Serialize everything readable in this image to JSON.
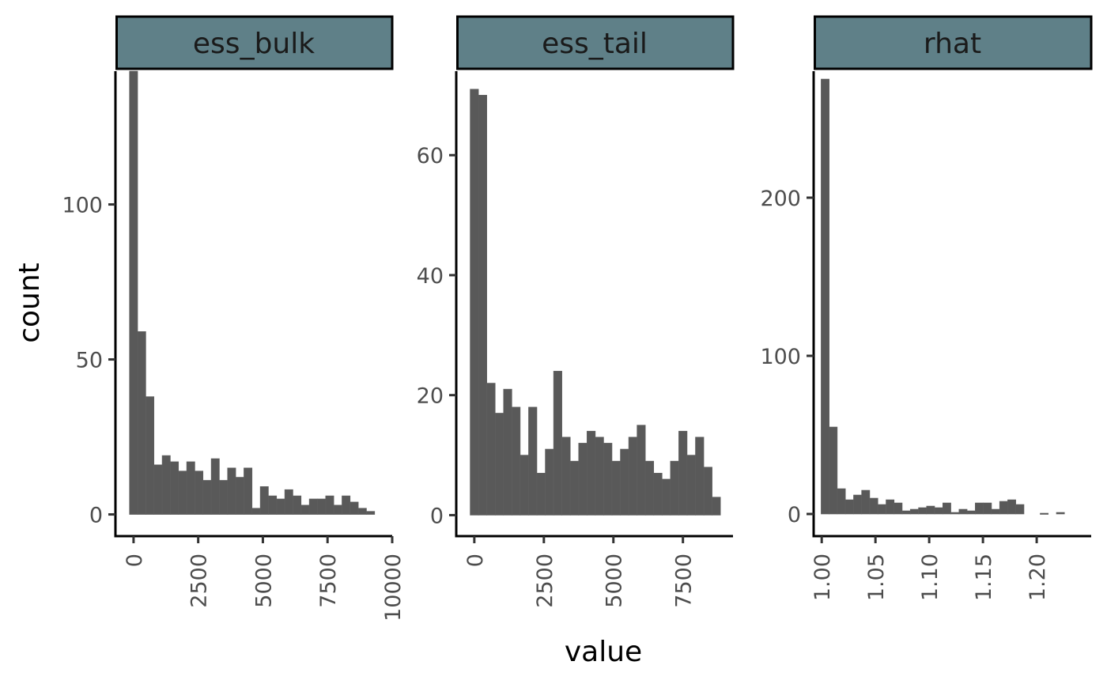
{
  "figure": {
    "x_title": "value",
    "y_title": "count",
    "bar_color": "#595959",
    "strip_color": "#5f8088",
    "panel_color": "#ffffff",
    "axis_color": "#000000"
  },
  "chart_data": [
    {
      "type": "bar",
      "title": "ess_bulk",
      "xlabel": "value",
      "ylabel": "count",
      "grid": false,
      "binwidth": 316,
      "xlim": [
        -700,
        10000
      ],
      "ylim": [
        -7,
        143
      ],
      "xticks": [
        0,
        2500,
        5000,
        7500,
        10000
      ],
      "xtick_labels": [
        "0",
        "2500",
        "5000",
        "7500",
        "10000"
      ],
      "yticks": [
        0,
        50,
        100
      ],
      "ytick_labels": [
        "0",
        "50",
        "100"
      ],
      "bin_centers": [
        0,
        316,
        632,
        948,
        1264,
        1580,
        1896,
        2212,
        2528,
        2844,
        3160,
        3476,
        3792,
        4108,
        4424,
        4740,
        5056,
        5372,
        5688,
        6004,
        6320,
        6636,
        6952,
        7268,
        7584,
        7900,
        8216,
        8532,
        8848,
        9164
      ],
      "counts": [
        143,
        59,
        38,
        16,
        19,
        17,
        14,
        17,
        14,
        11,
        18,
        11,
        15,
        12,
        15,
        2,
        9,
        6,
        5,
        8,
        6,
        3,
        5,
        5,
        6,
        3,
        6,
        4,
        2,
        1
      ]
    },
    {
      "type": "bar",
      "title": "ess_tail",
      "xlabel": "value",
      "ylabel": "count",
      "grid": false,
      "binwidth": 300,
      "xlim": [
        -650,
        9300
      ],
      "ylim": [
        -3.5,
        74
      ],
      "xticks": [
        0,
        2500,
        5000,
        7500
      ],
      "xtick_labels": [
        "0",
        "2500",
        "5000",
        "7500"
      ],
      "yticks": [
        0,
        20,
        40,
        60
      ],
      "ytick_labels": [
        "0",
        "20",
        "40",
        "60"
      ],
      "bin_centers": [
        0,
        300,
        600,
        900,
        1200,
        1500,
        1800,
        2100,
        2400,
        2700,
        3000,
        3300,
        3600,
        3900,
        4200,
        4500,
        4800,
        5100,
        5400,
        5700,
        6000,
        6300,
        6600,
        6900,
        7200,
        7500,
        7800,
        8100,
        8400,
        8700
      ],
      "counts": [
        71,
        70,
        22,
        17,
        21,
        18,
        10,
        18,
        7,
        11,
        24,
        13,
        9,
        12,
        14,
        13,
        12,
        9,
        11,
        13,
        15,
        9,
        7,
        6,
        9,
        14,
        10,
        13,
        8,
        3
      ]
    },
    {
      "type": "bar",
      "title": "rhat",
      "xlabel": "value",
      "ylabel": "count",
      "grid": false,
      "binwidth": 0.00755,
      "xlim": [
        0.9925,
        1.2507
      ],
      "ylim": [
        -14,
        280
      ],
      "xticks": [
        1.0,
        1.05,
        1.1,
        1.15,
        1.2
      ],
      "xtick_labels": [
        "1.00",
        "1.05",
        "1.10",
        "1.15",
        "1.20"
      ],
      "yticks": [
        0,
        100,
        200
      ],
      "ytick_labels": [
        "0",
        "100",
        "200"
      ],
      "bin_centers": [
        1.0032,
        1.0107,
        1.0183,
        1.0258,
        1.0334,
        1.0409,
        1.0485,
        1.056,
        1.0636,
        1.0711,
        1.0787,
        1.0862,
        1.0938,
        1.1013,
        1.1089,
        1.1164,
        1.124,
        1.1315,
        1.1391,
        1.1466,
        1.1542,
        1.1617,
        1.1693,
        1.1768,
        1.1844,
        1.1919,
        1.1995,
        1.207,
        1.2146,
        1.2221
      ],
      "counts": [
        275,
        55,
        16,
        9,
        12,
        15,
        10,
        6,
        9,
        7,
        2,
        3,
        4,
        5,
        4,
        7,
        1,
        3,
        2,
        7,
        7,
        3,
        8,
        9,
        6,
        0,
        0,
        0.5,
        0,
        1
      ]
    }
  ]
}
